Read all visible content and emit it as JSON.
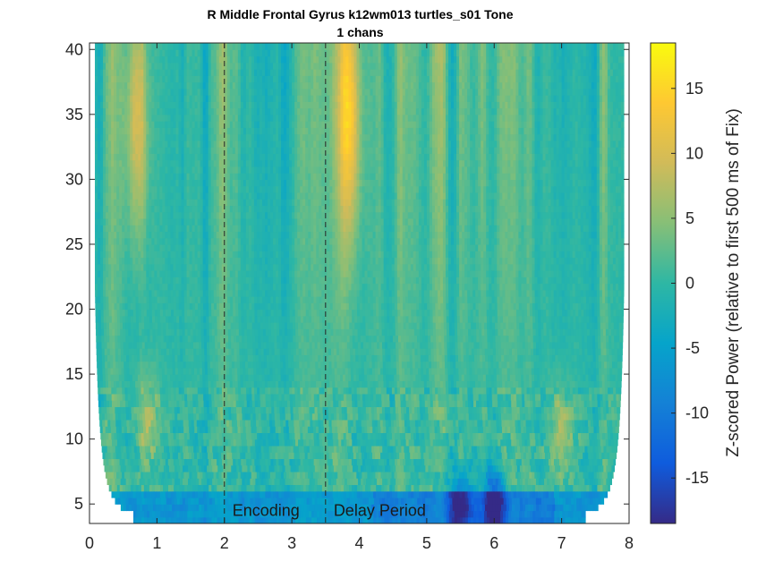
{
  "chart_data": {
    "type": "heatmap",
    "title": [
      "R Middle Frontal Gyrus k12wm013 turtles_s01 Tone",
      "1 chans"
    ],
    "xlabel": "",
    "ylabel": "",
    "xlim": [
      0,
      8
    ],
    "ylim": [
      3.5,
      40.5
    ],
    "x_ticks": [
      0,
      1,
      2,
      3,
      4,
      5,
      6,
      7,
      8
    ],
    "y_ticks": [
      5,
      10,
      15,
      20,
      25,
      30,
      35,
      40
    ],
    "colorbar": {
      "label": "Z-scored Power (relative to first 500 ms of Fix)",
      "range": [
        -18.5,
        18.5
      ],
      "ticks": [
        -15,
        -10,
        -5,
        0,
        5,
        10,
        15
      ],
      "colormap": "parula"
    },
    "event_lines": [
      {
        "x": 2.0,
        "label": "Encoding",
        "style": "dashed"
      },
      {
        "x": 3.5,
        "label": "Delay Period",
        "style": "dashed"
      }
    ],
    "cone_of_influence": "frequency-dependent valid window; blank (white) outside",
    "notable_features": [
      {
        "x": 0.7,
        "freq_range": [
          30,
          40
        ],
        "z": 11
      },
      {
        "x": 3.85,
        "freq_range": [
          30,
          40
        ],
        "z": 13
      },
      {
        "x": 5.5,
        "freq_range": [
          4,
          6
        ],
        "z": -11
      },
      {
        "x": 6.0,
        "freq_range": [
          4,
          6
        ],
        "z": -15
      },
      {
        "x": 0.85,
        "freq_range": [
          10,
          13
        ],
        "z": 7
      },
      {
        "x": 7.0,
        "freq_range": [
          9,
          12
        ],
        "z": 7
      }
    ]
  }
}
